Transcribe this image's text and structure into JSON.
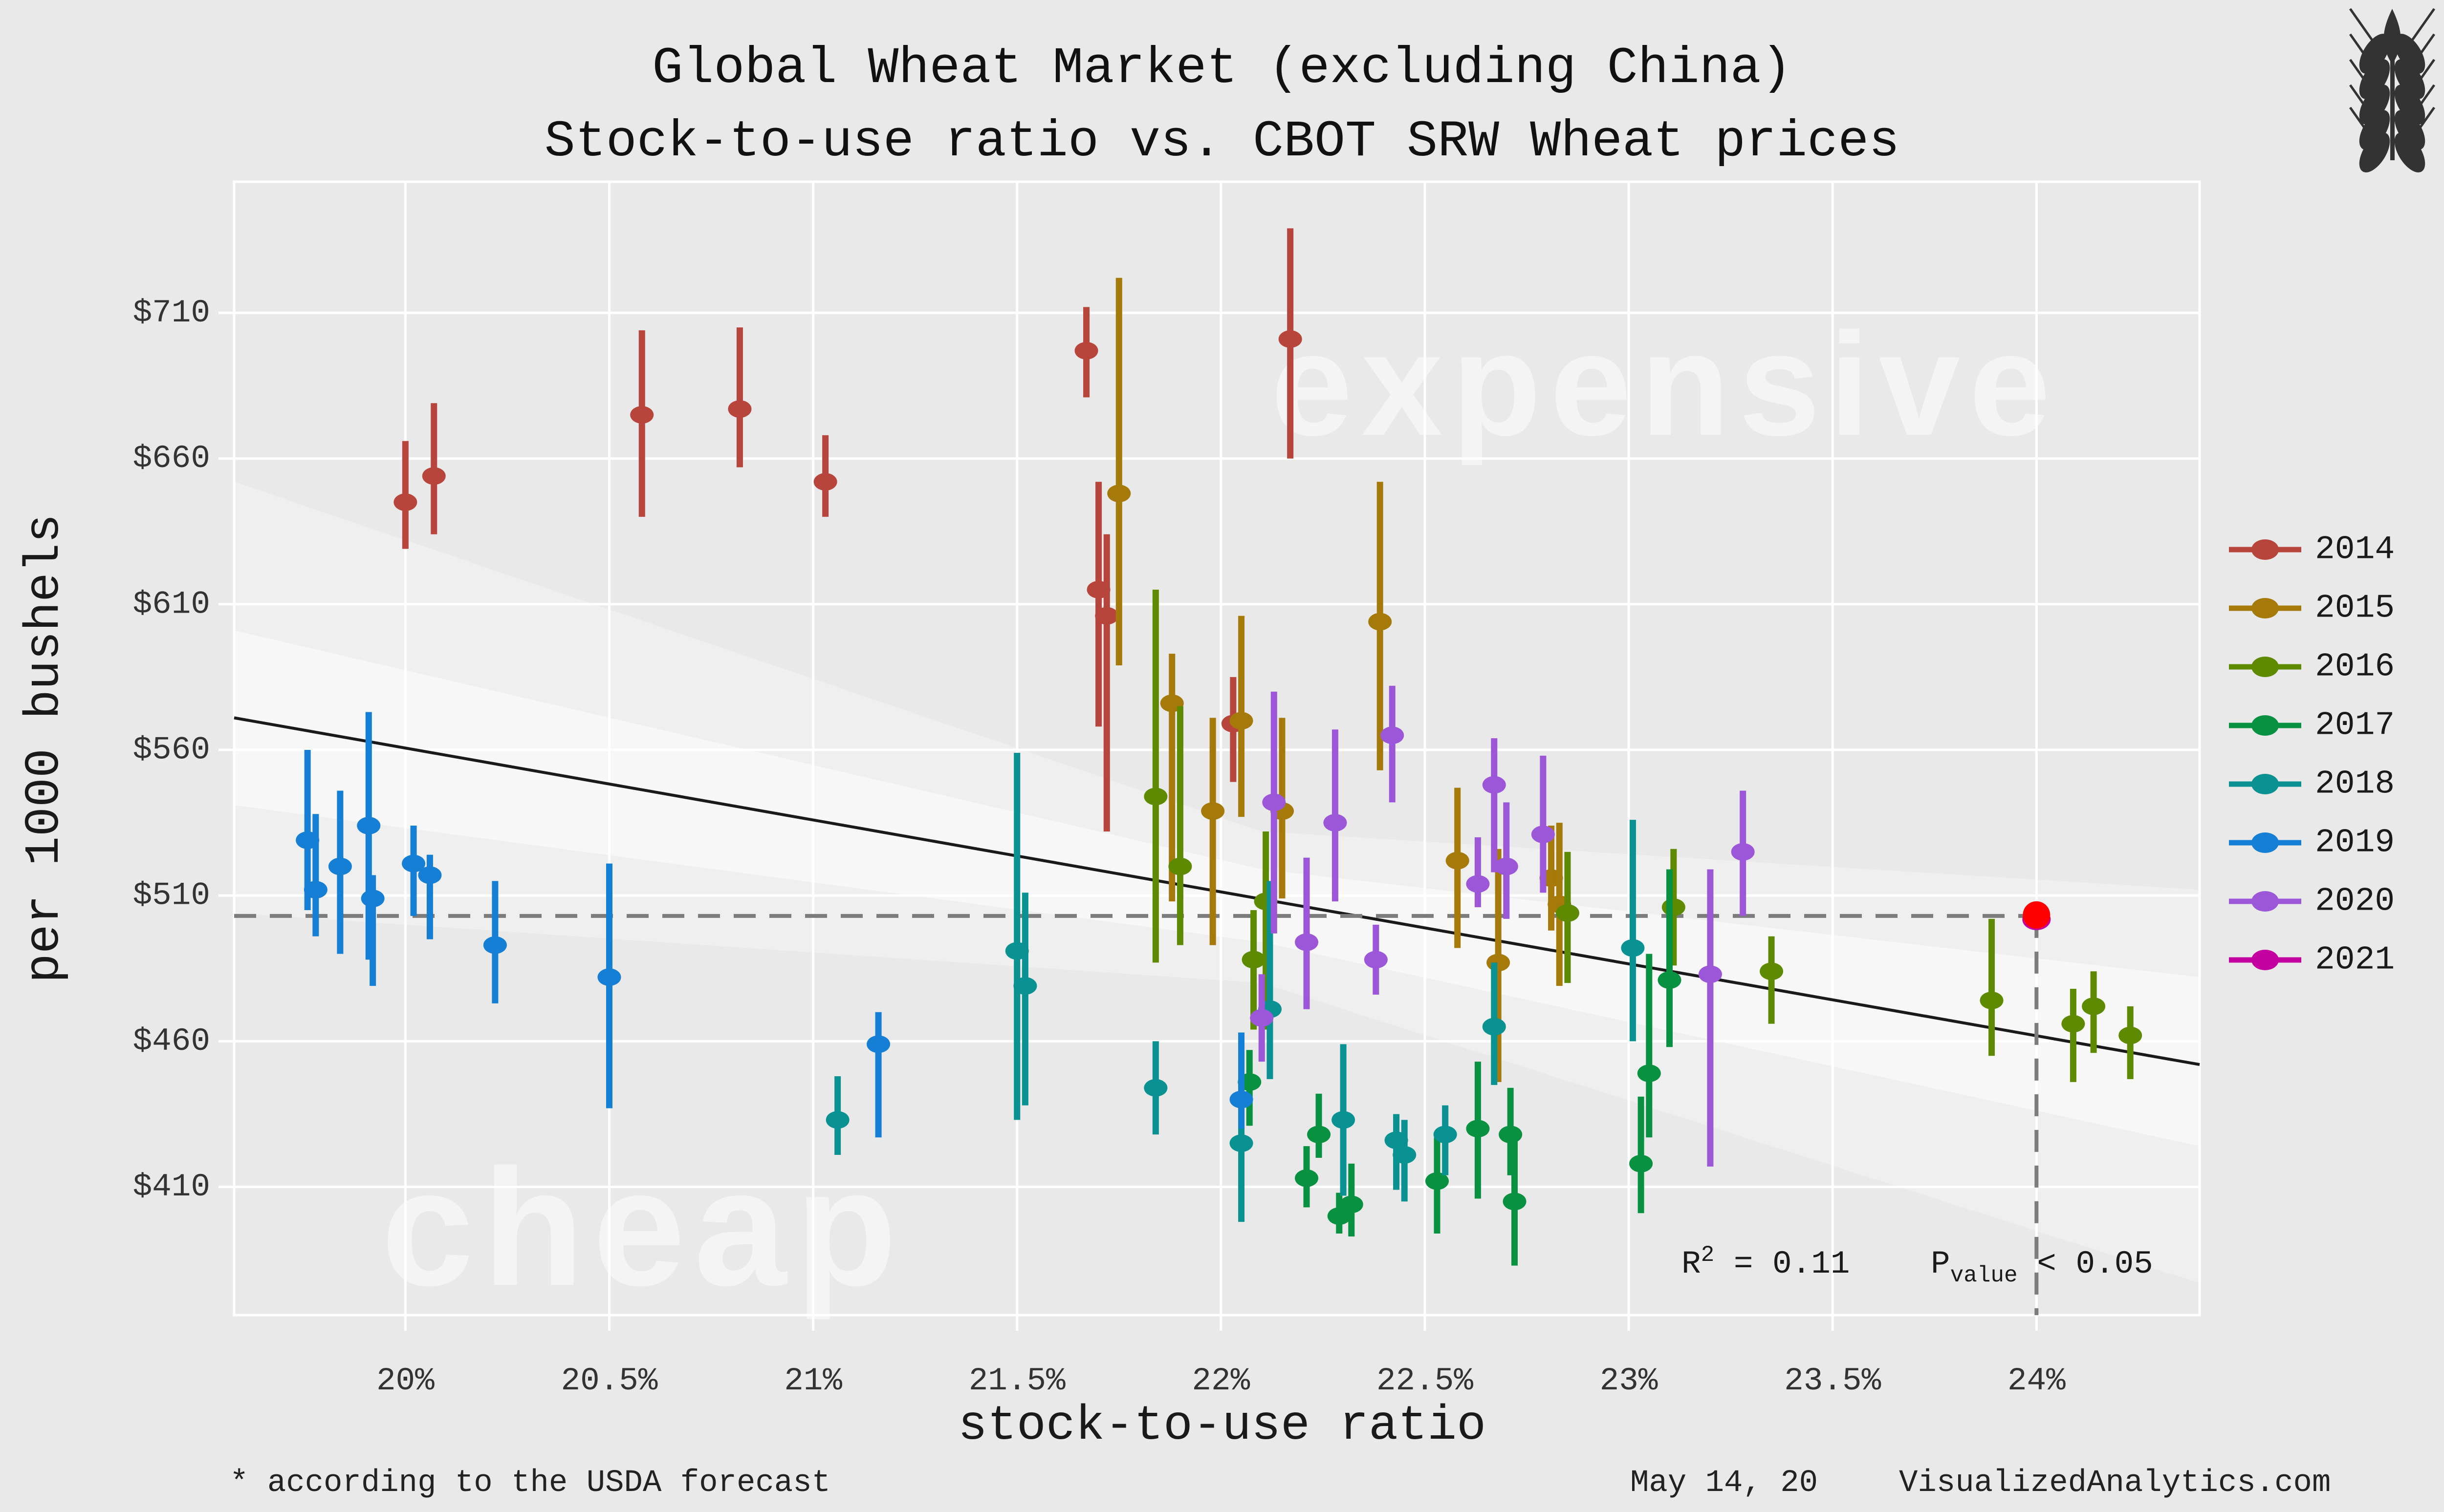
{
  "title": {
    "line1": "Global Wheat Market (excluding China)",
    "line2": "Stock-to-use ratio vs. CBOT SRW Wheat prices"
  },
  "logo_icon": "wheat-icon",
  "watermarks": {
    "expensive": "expensive",
    "cheap": "cheap"
  },
  "axes": {
    "x": {
      "title": "stock-to-use ratio",
      "ticks": [
        "20%",
        "20.5%",
        "21%",
        "21.5%",
        "22%",
        "22.5%",
        "23%",
        "23.5%",
        "24%"
      ],
      "tick_values": [
        20,
        20.5,
        21,
        21.5,
        22,
        22.5,
        23,
        23.5,
        24
      ]
    },
    "y": {
      "title": "per 1000 bushels",
      "ticks": [
        "$710",
        "$660",
        "$610",
        "$560",
        "$510",
        "$460",
        "$410"
      ],
      "tick_values": [
        710,
        660,
        610,
        560,
        510,
        460,
        410
      ]
    }
  },
  "annotations": {
    "r2": {
      "base": "R",
      "sup": "2",
      "rest": " = 0.11"
    },
    "pvalue": {
      "base": "P",
      "sub": "value",
      "rest": " < 0.05"
    }
  },
  "footer": {
    "left": "* according to the USDA forecast",
    "right_date": "May 14, 20",
    "right_brand": "VisualizedAnalytics.com"
  },
  "legend": {
    "items": [
      {
        "label": "2014",
        "color": "#b8453c"
      },
      {
        "label": "2015",
        "color": "#a5790a"
      },
      {
        "label": "2016",
        "color": "#5d8a00"
      },
      {
        "label": "2017",
        "color": "#089140"
      },
      {
        "label": "2018",
        "color": "#0a9191"
      },
      {
        "label": "2019",
        "color": "#147fd4"
      },
      {
        "label": "2020",
        "color": "#9c57d9"
      },
      {
        "label": "2021",
        "color": "#c400a0"
      }
    ]
  },
  "chart_data": {
    "type": "scatter",
    "title": "Global Wheat Market (excluding China) — Stock-to-use ratio vs. CBOT SRW Wheat prices",
    "xlabel": "stock-to-use ratio (%)",
    "ylabel": "price per 1000 bushels ($)",
    "x_domain": [
      19.58,
      24.4
    ],
    "y_domain": [
      366,
      755
    ],
    "x_grid": [
      20,
      20.5,
      21,
      21.5,
      22,
      22.5,
      23,
      23.5,
      24
    ],
    "y_grid": [
      410,
      460,
      510,
      560,
      660,
      610,
      710
    ],
    "grid_on": true,
    "legend_position": "right",
    "trend_line": {
      "x1": 19.58,
      "y1": 571,
      "x2": 24.4,
      "y2": 452
    },
    "r_squared": 0.11,
    "p_value_text": "< 0.05",
    "forecast_marker": {
      "ratio": 24.0,
      "price": 503,
      "top_color": "#ff0000"
    },
    "ci_bands": [
      {
        "opacity": 0.3,
        "upper": [
          [
            19.58,
            652
          ],
          [
            22.1,
            532
          ],
          [
            24.4,
            512
          ]
        ],
        "lower": [
          [
            19.58,
            504
          ],
          [
            22.1,
            480
          ],
          [
            24.4,
            377
          ]
        ]
      },
      {
        "opacity": 0.5,
        "upper": [
          [
            19.58,
            601
          ],
          [
            22.1,
            519
          ],
          [
            24.4,
            482
          ]
        ],
        "lower": [
          [
            19.58,
            541
          ],
          [
            22.1,
            494
          ],
          [
            24.4,
            424
          ]
        ]
      }
    ],
    "series": [
      {
        "year": "2014",
        "color": "#b8453c",
        "points": [
          [
            20.0,
            645,
            629,
            666
          ],
          [
            20.07,
            654,
            634,
            679
          ],
          [
            20.58,
            675,
            640,
            704
          ],
          [
            20.82,
            677,
            657,
            705
          ],
          [
            21.03,
            652,
            640,
            668
          ],
          [
            21.67,
            697,
            681,
            712
          ],
          [
            21.7,
            615,
            568,
            652
          ],
          [
            21.72,
            606,
            532,
            634
          ],
          [
            22.03,
            569,
            549,
            585
          ],
          [
            22.17,
            701,
            660,
            739
          ]
        ]
      },
      {
        "year": "2015",
        "color": "#a5790a",
        "points": [
          [
            21.75,
            648,
            589,
            722
          ],
          [
            21.88,
            576,
            508,
            593
          ],
          [
            21.98,
            539,
            493,
            571
          ],
          [
            22.05,
            570,
            537,
            606
          ],
          [
            22.15,
            539,
            509,
            571
          ],
          [
            22.39,
            604,
            553,
            652
          ],
          [
            22.58,
            522,
            492,
            547
          ],
          [
            22.68,
            487,
            446,
            526
          ],
          [
            22.81,
            516,
            498,
            534
          ],
          [
            22.83,
            507,
            479,
            535
          ]
        ]
      },
      {
        "year": "2016",
        "color": "#5d8a00",
        "points": [
          [
            21.84,
            544,
            487,
            615
          ],
          [
            21.9,
            520,
            493,
            575
          ],
          [
            22.08,
            488,
            464,
            505
          ],
          [
            22.11,
            508,
            464,
            532
          ],
          [
            22.85,
            504,
            480,
            525
          ],
          [
            23.11,
            506,
            486,
            526
          ],
          [
            23.35,
            484,
            466,
            496
          ],
          [
            23.89,
            474,
            455,
            502
          ],
          [
            24.09,
            466,
            446,
            478
          ],
          [
            24.14,
            472,
            456,
            484
          ],
          [
            24.23,
            462,
            447,
            472
          ]
        ]
      },
      {
        "year": "2017",
        "color": "#089140",
        "points": [
          [
            22.07,
            446,
            431,
            457
          ],
          [
            22.21,
            413,
            403,
            424
          ],
          [
            22.24,
            428,
            420,
            442
          ],
          [
            22.29,
            400,
            394,
            408
          ],
          [
            22.32,
            404,
            393,
            418
          ],
          [
            22.53,
            412,
            394,
            427
          ],
          [
            22.63,
            430,
            406,
            453
          ],
          [
            22.71,
            428,
            414,
            444
          ],
          [
            22.72,
            405,
            383,
            428
          ],
          [
            23.03,
            418,
            401,
            441
          ],
          [
            23.05,
            449,
            427,
            490
          ],
          [
            23.1,
            481,
            458,
            519
          ]
        ]
      },
      {
        "year": "2018",
        "color": "#0a9191",
        "points": [
          [
            21.06,
            433,
            421,
            448
          ],
          [
            21.5,
            491,
            433,
            559
          ],
          [
            21.52,
            479,
            438,
            511
          ],
          [
            21.84,
            444,
            428,
            460
          ],
          [
            22.05,
            425,
            398,
            445
          ],
          [
            22.12,
            471,
            447,
            515
          ],
          [
            22.3,
            433,
            407,
            459
          ],
          [
            22.43,
            426,
            409,
            435
          ],
          [
            22.45,
            421,
            405,
            433
          ],
          [
            22.55,
            428,
            414,
            438
          ],
          [
            22.67,
            465,
            445,
            487
          ],
          [
            23.01,
            492,
            460,
            536
          ]
        ]
      },
      {
        "year": "2019",
        "color": "#147fd4",
        "points": [
          [
            19.76,
            529,
            505,
            560
          ],
          [
            19.78,
            512,
            496,
            538
          ],
          [
            19.84,
            520,
            490,
            546
          ],
          [
            19.91,
            534,
            488,
            573
          ],
          [
            19.92,
            509,
            479,
            517
          ],
          [
            20.02,
            521,
            503,
            534
          ],
          [
            20.06,
            517,
            495,
            524
          ],
          [
            20.22,
            493,
            473,
            515
          ],
          [
            20.5,
            482,
            437,
            521
          ],
          [
            21.16,
            459,
            427,
            470
          ],
          [
            22.05,
            440,
            430,
            463
          ]
        ]
      },
      {
        "year": "2020",
        "color": "#9c57d9",
        "points": [
          [
            22.1,
            468,
            453,
            483
          ],
          [
            22.13,
            542,
            497,
            580
          ],
          [
            22.21,
            494,
            471,
            523
          ],
          [
            22.28,
            535,
            508,
            567
          ],
          [
            22.38,
            488,
            476,
            500
          ],
          [
            22.42,
            565,
            542,
            582
          ],
          [
            22.63,
            514,
            506,
            530
          ],
          [
            22.67,
            548,
            518,
            564
          ],
          [
            22.7,
            520,
            502,
            542
          ],
          [
            22.79,
            531,
            511,
            558
          ],
          [
            23.2,
            483,
            417,
            519
          ],
          [
            23.28,
            525,
            503,
            546
          ]
        ]
      },
      {
        "year": "2021",
        "color": "#c400a0",
        "points": [
          [
            24.0,
            503,
            503,
            503
          ]
        ]
      }
    ]
  }
}
